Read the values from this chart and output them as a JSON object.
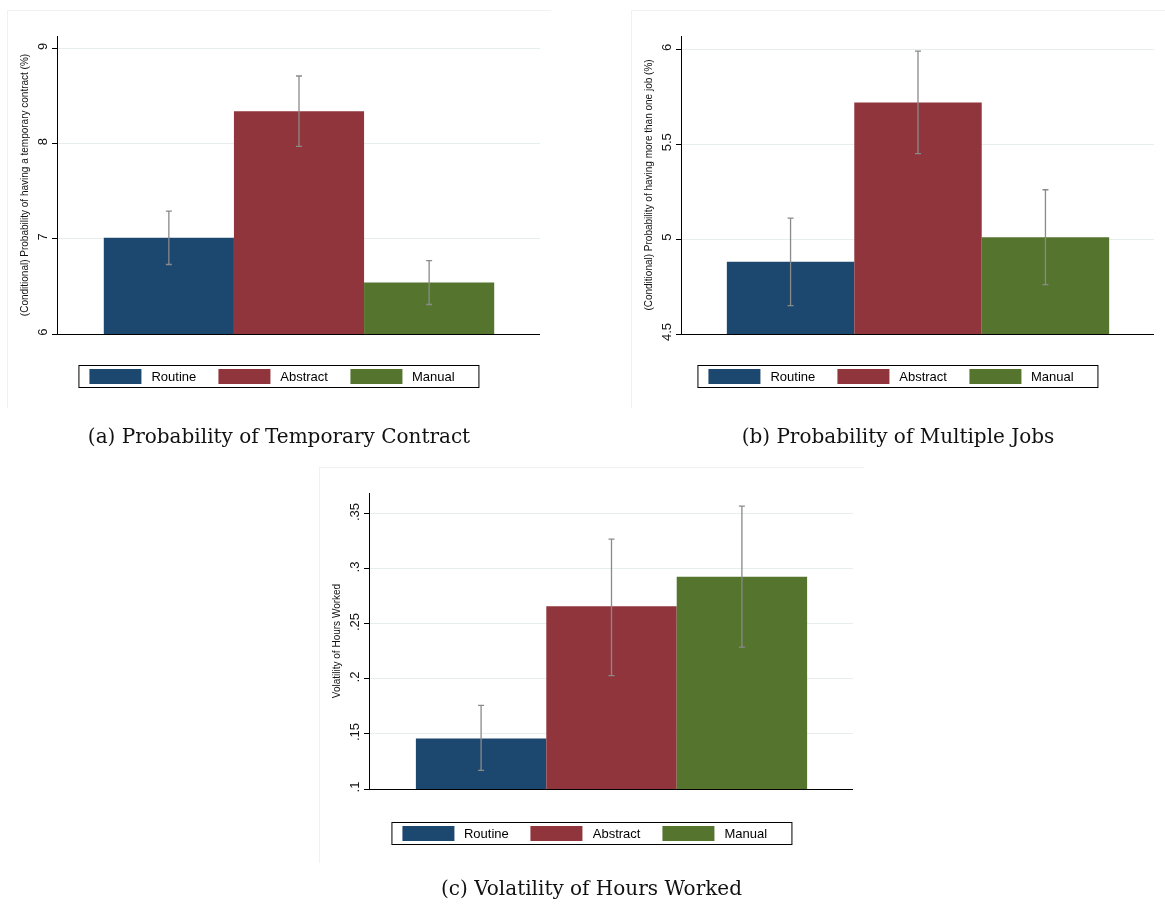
{
  "chart_data": [
    {
      "type": "bar",
      "title": "(a) Probability of Temporary Contract",
      "ylabel": "(Conditional) Probability of having a temporary contract (%)",
      "categories": [
        null
      ],
      "series": [
        {
          "name": "Routine",
          "color": "#1c476f",
          "values": [
            7.01
          ],
          "errors": [
            [
              6.73,
              7.29
            ]
          ]
        },
        {
          "name": "Abstract",
          "color": "#90353b",
          "values": [
            8.34
          ],
          "errors": [
            [
              7.97,
              8.71
            ]
          ]
        },
        {
          "name": "Manual",
          "color": "#55752f",
          "values": [
            6.54
          ],
          "errors": [
            [
              6.31,
              6.77
            ]
          ]
        }
      ],
      "ylim": [
        6,
        9.13
      ],
      "yticks": [
        6,
        7,
        8,
        9
      ],
      "grid": "y",
      "legend": "bottom",
      "tick_labels": "y"
    },
    {
      "type": "bar",
      "title": "(b) Probability of Multiple Jobs",
      "ylabel": "(Conditional) Probability of having more than one job (%)",
      "categories": [
        null
      ],
      "series": [
        {
          "name": "Routine",
          "color": "#1c476f",
          "values": [
            4.88
          ],
          "errors": [
            [
              4.65,
              5.11
            ]
          ]
        },
        {
          "name": "Abstract",
          "color": "#90353b",
          "values": [
            5.72
          ],
          "errors": [
            [
              5.45,
              5.99
            ]
          ]
        },
        {
          "name": "Manual",
          "color": "#55752f",
          "values": [
            5.01
          ],
          "errors": [
            [
              4.76,
              5.26
            ]
          ]
        }
      ],
      "ylim": [
        4.5,
        6.07
      ],
      "yticks": [
        4.5,
        5,
        5.5,
        6
      ],
      "grid": "y",
      "legend": "bottom",
      "tick_labels": "y"
    },
    {
      "type": "bar",
      "title": "(c) Volatility of Hours Worked",
      "ylabel": "Volatility of Hours Worked",
      "categories": [
        null
      ],
      "series": [
        {
          "name": "Routine",
          "color": "#1c476f",
          "values": [
            0.146
          ],
          "errors": [
            [
              0.117,
              0.176
            ]
          ]
        },
        {
          "name": "Abstract",
          "color": "#90353b",
          "values": [
            0.266
          ],
          "errors": [
            [
              0.203,
              0.327
            ]
          ]
        },
        {
          "name": "Manual",
          "color": "#55752f",
          "values": [
            0.293
          ],
          "errors": [
            [
              0.229,
              0.357
            ]
          ]
        }
      ],
      "ylim": [
        0.1,
        0.369
      ],
      "yticks": [
        {
          "value": 0.1,
          "label": ".1"
        },
        {
          "value": 0.15,
          "label": ".15"
        },
        {
          "value": 0.2,
          "label": ".2"
        },
        {
          "value": 0.25,
          "label": ".25"
        },
        {
          "value": 0.3,
          "label": ".3"
        },
        {
          "value": 0.35,
          "label": ".35"
        }
      ],
      "grid": "y",
      "legend": "bottom",
      "tick_labels": "y"
    }
  ]
}
